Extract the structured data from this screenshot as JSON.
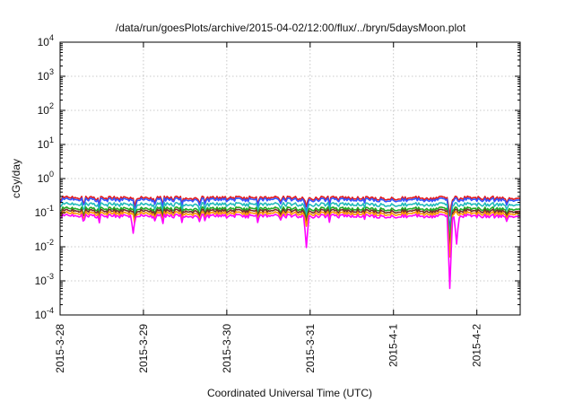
{
  "chart_data": {
    "type": "line",
    "title": "/data/run/goesPlots/archive/2015-04-02/12:00/flux/../bryn/5daysMoon.plot",
    "xlabel": "Coordinated Universal Time (UTC)",
    "ylabel": "cGy/day",
    "yscale": "log",
    "ylim_exp": [
      -4,
      4
    ],
    "y_ticks": [
      {
        "base": "10",
        "exp": "-4"
      },
      {
        "base": "10",
        "exp": "-3"
      },
      {
        "base": "10",
        "exp": "-2"
      },
      {
        "base": "10",
        "exp": "-1"
      },
      {
        "base": "10",
        "exp": "0"
      },
      {
        "base": "10",
        "exp": "1"
      },
      {
        "base": "10",
        "exp": "2"
      },
      {
        "base": "10",
        "exp": "3"
      },
      {
        "base": "10",
        "exp": "4"
      }
    ],
    "x_range_days": [
      0,
      5.52
    ],
    "x_ticks": [
      {
        "label": "2015-3-28",
        "day": 0
      },
      {
        "label": "2015-3-29",
        "day": 1
      },
      {
        "label": "2015-3-30",
        "day": 2
      },
      {
        "label": "2015-3-31",
        "day": 3
      },
      {
        "label": "2015-4-1",
        "day": 4
      },
      {
        "label": "2015-4-2",
        "day": 5
      }
    ],
    "grid": true,
    "legend": "none",
    "series": [
      {
        "color": "#e41a1c",
        "base": 0.27,
        "dips": [
          [
            0.9,
            0.15
          ],
          [
            2.95,
            0.15
          ],
          [
            4.68,
            0.08
          ]
        ]
      },
      {
        "color": "#3355ff",
        "base": 0.24,
        "dips": [
          [
            0.9,
            0.1
          ],
          [
            2.95,
            0.1
          ],
          [
            4.68,
            0.03
          ]
        ]
      },
      {
        "color": "#22bbbb",
        "base": 0.175,
        "dips": [
          [
            0.9,
            0.08
          ],
          [
            2.95,
            0.08
          ],
          [
            4.68,
            0.02
          ]
        ]
      },
      {
        "color": "#22aa22",
        "base": 0.13,
        "dips": [
          [
            0.9,
            0.07
          ],
          [
            2.95,
            0.06
          ],
          [
            4.68,
            0.012
          ]
        ]
      },
      {
        "color": "#7a2a2a",
        "base": 0.112,
        "dips": [
          [
            0.9,
            0.06
          ],
          [
            2.95,
            0.05
          ],
          [
            4.68,
            0.008
          ]
        ]
      },
      {
        "color": "#ff9900",
        "base": 0.095,
        "dips": [
          [
            0.9,
            0.05
          ],
          [
            2.95,
            0.04
          ],
          [
            4.68,
            0.005
          ]
        ]
      },
      {
        "color": "#ff00ff",
        "base": 0.08,
        "dips": [
          [
            0.88,
            0.025
          ],
          [
            2.95,
            0.0095
          ],
          [
            4.68,
            0.0006
          ],
          [
            4.76,
            0.012
          ]
        ]
      }
    ]
  }
}
